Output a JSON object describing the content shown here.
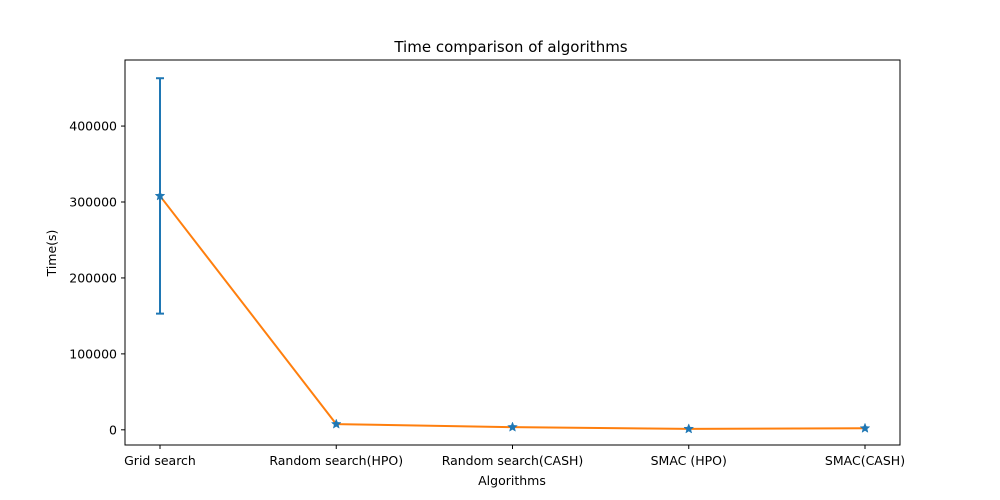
{
  "chart_data": {
    "type": "line",
    "title": "Time comparison of algorithms",
    "xlabel": "Algorithms",
    "ylabel": "Time(s)",
    "categories": [
      "Grid search",
      "Random search(HPO)",
      "Random search(CASH)",
      "SMAC (HPO)",
      "SMAC(CASH)"
    ],
    "ylim": [
      -20000,
      487000
    ],
    "yticks": [
      0,
      100000,
      200000,
      300000,
      400000
    ],
    "ytick_labels": [
      "0",
      "100000",
      "200000",
      "300000",
      "400000"
    ],
    "grid": false,
    "series": [
      {
        "values": [
          308000,
          7500,
          3500,
          1200,
          2000
        ],
        "error": [
          155000,
          0,
          0,
          0,
          0
        ],
        "marker": "star",
        "line_color": "#ff7f0e",
        "marker_color": "#1f77b4",
        "errorbar_color": "#1f77b4"
      }
    ]
  }
}
